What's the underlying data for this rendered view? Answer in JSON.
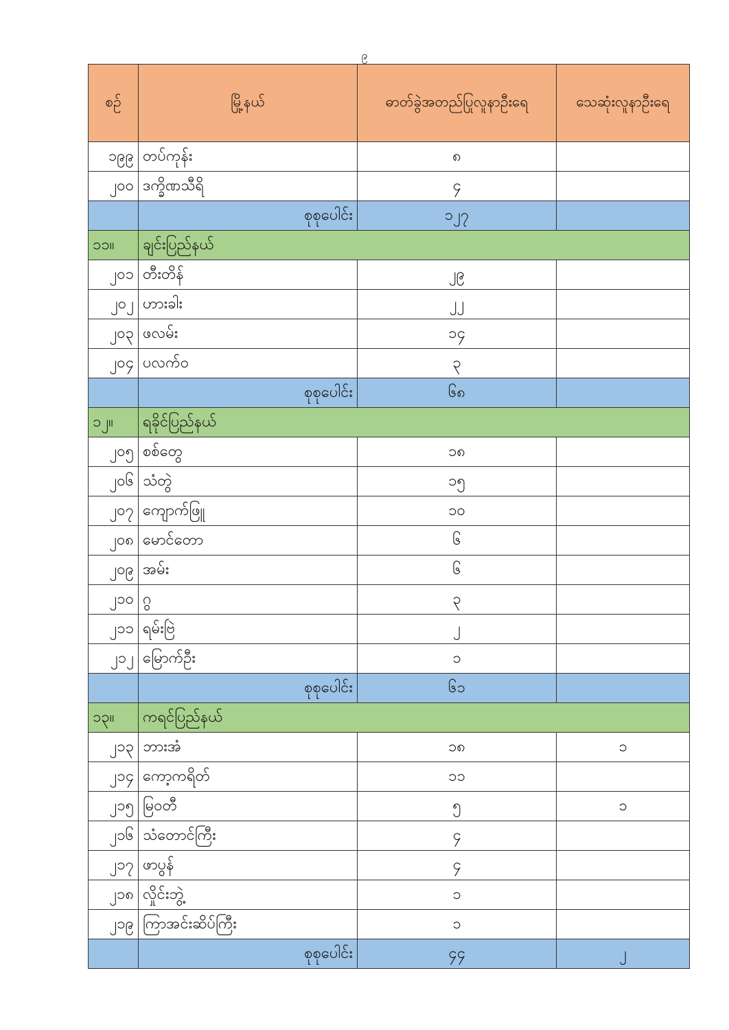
{
  "page_number": "၉",
  "colors": {
    "header": "#f4b183",
    "total_row": "#9dc3e6",
    "group_row": "#a9d18e"
  },
  "columns": [
    "စဉ်",
    "မြို့နယ်",
    "ဓာတ်ခွဲအတည်ပြုလူနာဦးရေ",
    "သေဆုံးလူနာဦးရေ"
  ],
  "rows": [
    {
      "type": "data",
      "seq": "၁၉၉",
      "township": "တပ်ကုန်း",
      "confirmed": "၈",
      "deaths": ""
    },
    {
      "type": "data",
      "seq": "၂၀၀",
      "township": "ဒက္ခိဏသီရိ",
      "confirmed": "၄",
      "deaths": ""
    },
    {
      "type": "total",
      "label": "စုစုပေါင်း",
      "confirmed": "၁၂၇",
      "deaths": ""
    },
    {
      "type": "group",
      "seq": "၁၁။",
      "name": "ချင်းပြည်နယ်"
    },
    {
      "type": "data",
      "seq": "၂၀၁",
      "township": "တီးတိန်",
      "confirmed": "၂၉",
      "deaths": ""
    },
    {
      "type": "data",
      "seq": "၂၀၂",
      "township": "ဟားခါး",
      "confirmed": "၂၂",
      "deaths": ""
    },
    {
      "type": "data",
      "seq": "၂၀၃",
      "township": "ဖလမ်း",
      "confirmed": "၁၄",
      "deaths": ""
    },
    {
      "type": "data",
      "seq": "၂၀၄",
      "township": "ပလက်ဝ",
      "confirmed": "၃",
      "deaths": ""
    },
    {
      "type": "total",
      "label": "စုစုပေါင်း",
      "confirmed": "၆၈",
      "deaths": ""
    },
    {
      "type": "group",
      "seq": "၁၂။",
      "name": "ရခိုင်ပြည်နယ်"
    },
    {
      "type": "data",
      "seq": "၂၀၅",
      "township": "စစ်တွေ",
      "confirmed": "၁၈",
      "deaths": ""
    },
    {
      "type": "data",
      "seq": "၂၀၆",
      "township": "သံတွဲ",
      "confirmed": "၁၅",
      "deaths": ""
    },
    {
      "type": "data",
      "seq": "၂၀၇",
      "township": "ကျောက်ဖြူ",
      "confirmed": "၁၀",
      "deaths": ""
    },
    {
      "type": "data",
      "seq": "၂၀၈",
      "township": "မောင်တော",
      "confirmed": "၆",
      "deaths": ""
    },
    {
      "type": "data",
      "seq": "၂၀၉",
      "township": "အမ်း",
      "confirmed": "၆",
      "deaths": ""
    },
    {
      "type": "data",
      "seq": "၂၁၀",
      "township": "ဂွ",
      "confirmed": "၃",
      "deaths": ""
    },
    {
      "type": "data",
      "seq": "၂၁၁",
      "township": "ရမ်းဗြဲ",
      "confirmed": "၂",
      "deaths": ""
    },
    {
      "type": "data",
      "seq": "၂၁၂",
      "township": "မြောက်ဦး",
      "confirmed": "၁",
      "deaths": ""
    },
    {
      "type": "total",
      "label": "စုစုပေါင်း",
      "confirmed": "၆၁",
      "deaths": ""
    },
    {
      "type": "group",
      "seq": "၁၃။",
      "name": "ကရင်ပြည်နယ်"
    },
    {
      "type": "data",
      "seq": "၂၁၃",
      "township": "ဘားအံ",
      "confirmed": "၁၈",
      "deaths": "၁"
    },
    {
      "type": "data",
      "seq": "၂၁၄",
      "township": "ကော့ကရိတ်",
      "confirmed": "၁၁",
      "deaths": ""
    },
    {
      "type": "data",
      "seq": "၂၁၅",
      "township": "မြဝတီ",
      "confirmed": "၅",
      "deaths": "၁"
    },
    {
      "type": "data",
      "seq": "၂၁၆",
      "township": "သံတောင်ကြီး",
      "confirmed": "၄",
      "deaths": ""
    },
    {
      "type": "data",
      "seq": "၂၁၇",
      "township": "ဖာပွန်",
      "confirmed": "၄",
      "deaths": ""
    },
    {
      "type": "data",
      "seq": "၂၁၈",
      "township": "လှိုင်းဘွဲ့",
      "confirmed": "၁",
      "deaths": ""
    },
    {
      "type": "data",
      "seq": "၂၁၉",
      "township": "ကြာအင်းဆိပ်ကြီး",
      "confirmed": "၁",
      "deaths": ""
    },
    {
      "type": "total",
      "label": "စုစုပေါင်း",
      "confirmed": "၄၄",
      "deaths": "၂"
    }
  ]
}
